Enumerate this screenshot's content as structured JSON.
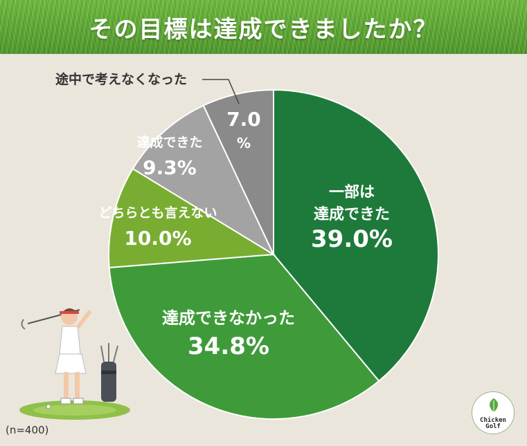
{
  "title": "その目標は達成できましたか？",
  "note": "(n=400)",
  "logo": {
    "line1": "Chicken",
    "line2": "Golf"
  },
  "chart_data": {
    "type": "pie",
    "title": "その目標は達成できましたか？",
    "start_angle_deg": 0,
    "direction": "clockwise",
    "slices": [
      {
        "lines": [
          "一部は",
          "達成できた"
        ],
        "value": 39.0,
        "value_label": "39.0%",
        "color": "#1e7a3a",
        "text_color": "#ffffff"
      },
      {
        "lines": [
          "達成できなかった"
        ],
        "value": 34.8,
        "value_label": "34.8%",
        "color": "#3f9b3a",
        "text_color": "#ffffff"
      },
      {
        "lines": [
          "どちらとも言えない"
        ],
        "value": 10.0,
        "value_label": "10.0%",
        "color": "#79ad31",
        "text_color": "#ffffff"
      },
      {
        "lines": [
          "達成できた"
        ],
        "value": 9.3,
        "value_label": "9.3%",
        "color": "#a3a3a3",
        "text_color": "#ffffff"
      },
      {
        "lines": [
          "途中で考えなくなった"
        ],
        "value": 7.0,
        "value_label": "7.0%",
        "color": "#8a8a8a",
        "text_color": "#ffffff"
      }
    ],
    "legend": "none"
  }
}
